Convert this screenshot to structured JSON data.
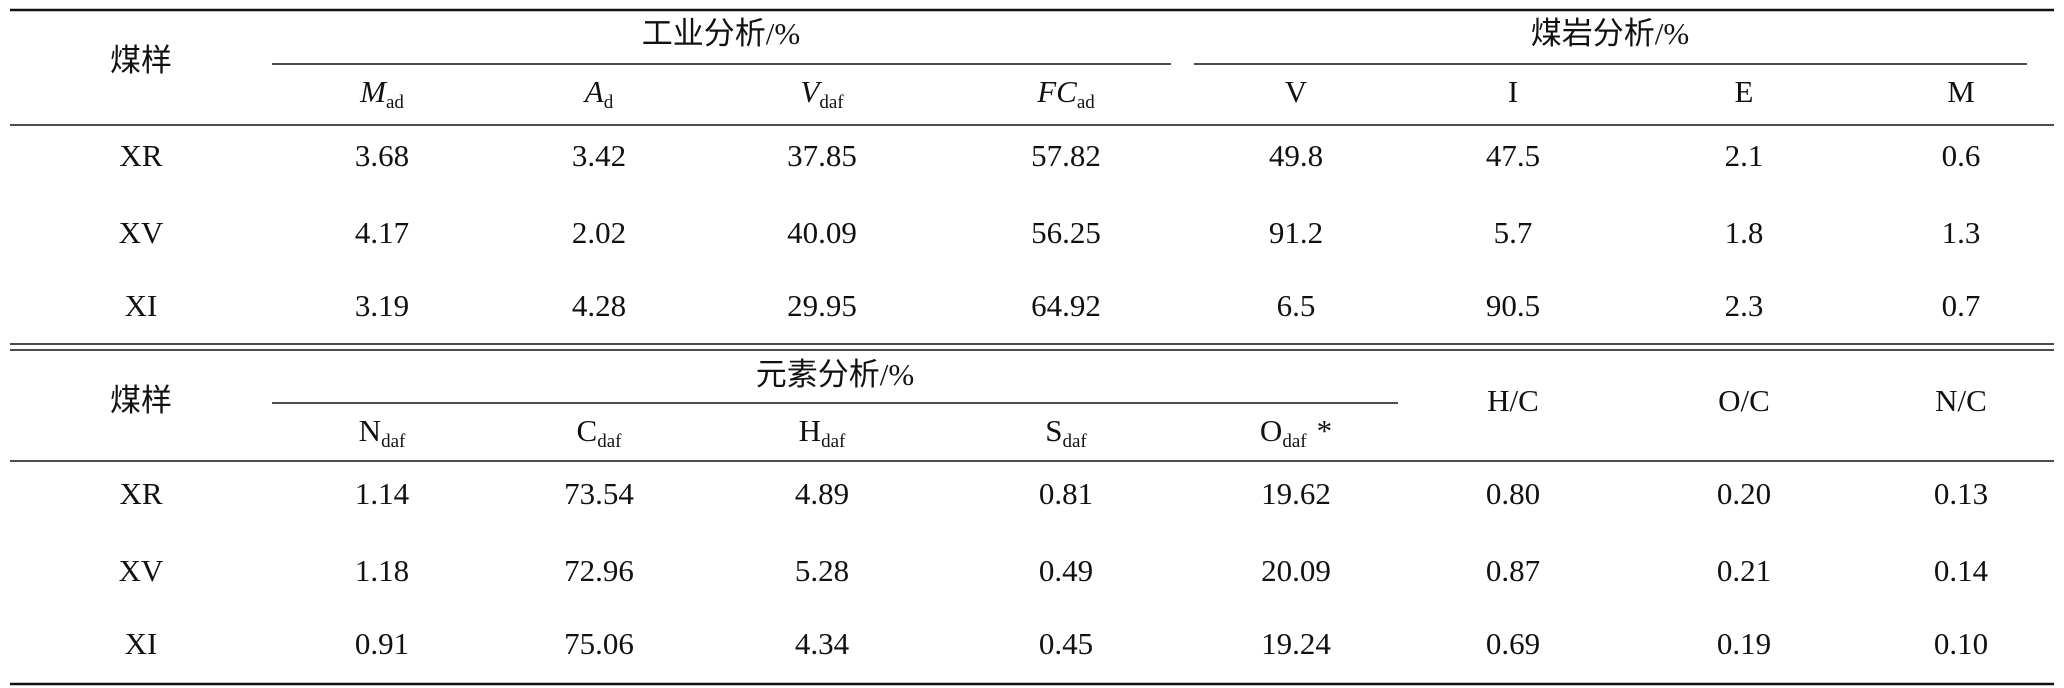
{
  "table_1": {
    "header": {
      "sample": "煤样",
      "group_1": "工业分析/%",
      "group_2": "煤岩分析/%",
      "columns": [
        {
          "symbol": "M",
          "subscript": "ad"
        },
        {
          "symbol": "A",
          "subscript": "d"
        },
        {
          "symbol": "V",
          "subscript": "daf"
        },
        {
          "symbol": "FC",
          "subscript": "ad"
        },
        "V",
        "I",
        "E",
        "M"
      ]
    },
    "rows": [
      [
        "XR",
        "3.68",
        "3.42",
        "37.85",
        "57.82",
        "49.8",
        "47.5",
        "2.1",
        "0.6"
      ],
      [
        "XV",
        "4.17",
        "2.02",
        "40.09",
        "56.25",
        "91.2",
        "5.7",
        "1.8",
        "1.3"
      ],
      [
        "XI",
        "3.19",
        "4.28",
        "29.95",
        "64.92",
        "6.5",
        "90.5",
        "2.3",
        "0.7"
      ]
    ]
  },
  "table_2": {
    "header": {
      "sample": "煤样",
      "group_1": "元素分析/%",
      "columns": [
        {
          "symbol": "N",
          "subscript": "daf"
        },
        {
          "symbol": "C",
          "subscript": "daf"
        },
        {
          "symbol": "H",
          "subscript": "daf"
        },
        {
          "symbol": "S",
          "subscript": "daf"
        },
        {
          "symbol": "O",
          "subscript": "daf",
          "note": "*"
        },
        "H/C",
        "O/C",
        "N/C"
      ]
    },
    "rows": [
      [
        "XR",
        "1.14",
        "73.54",
        "4.89",
        "0.81",
        "19.62",
        "0.80",
        "0.20",
        "0.13"
      ],
      [
        "XV",
        "1.18",
        "72.96",
        "5.28",
        "0.49",
        "20.09",
        "0.87",
        "0.21",
        "0.14"
      ],
      [
        "XI",
        "0.91",
        "75.06",
        "4.34",
        "0.45",
        "19.24",
        "0.69",
        "0.19",
        "0.10"
      ]
    ]
  }
}
